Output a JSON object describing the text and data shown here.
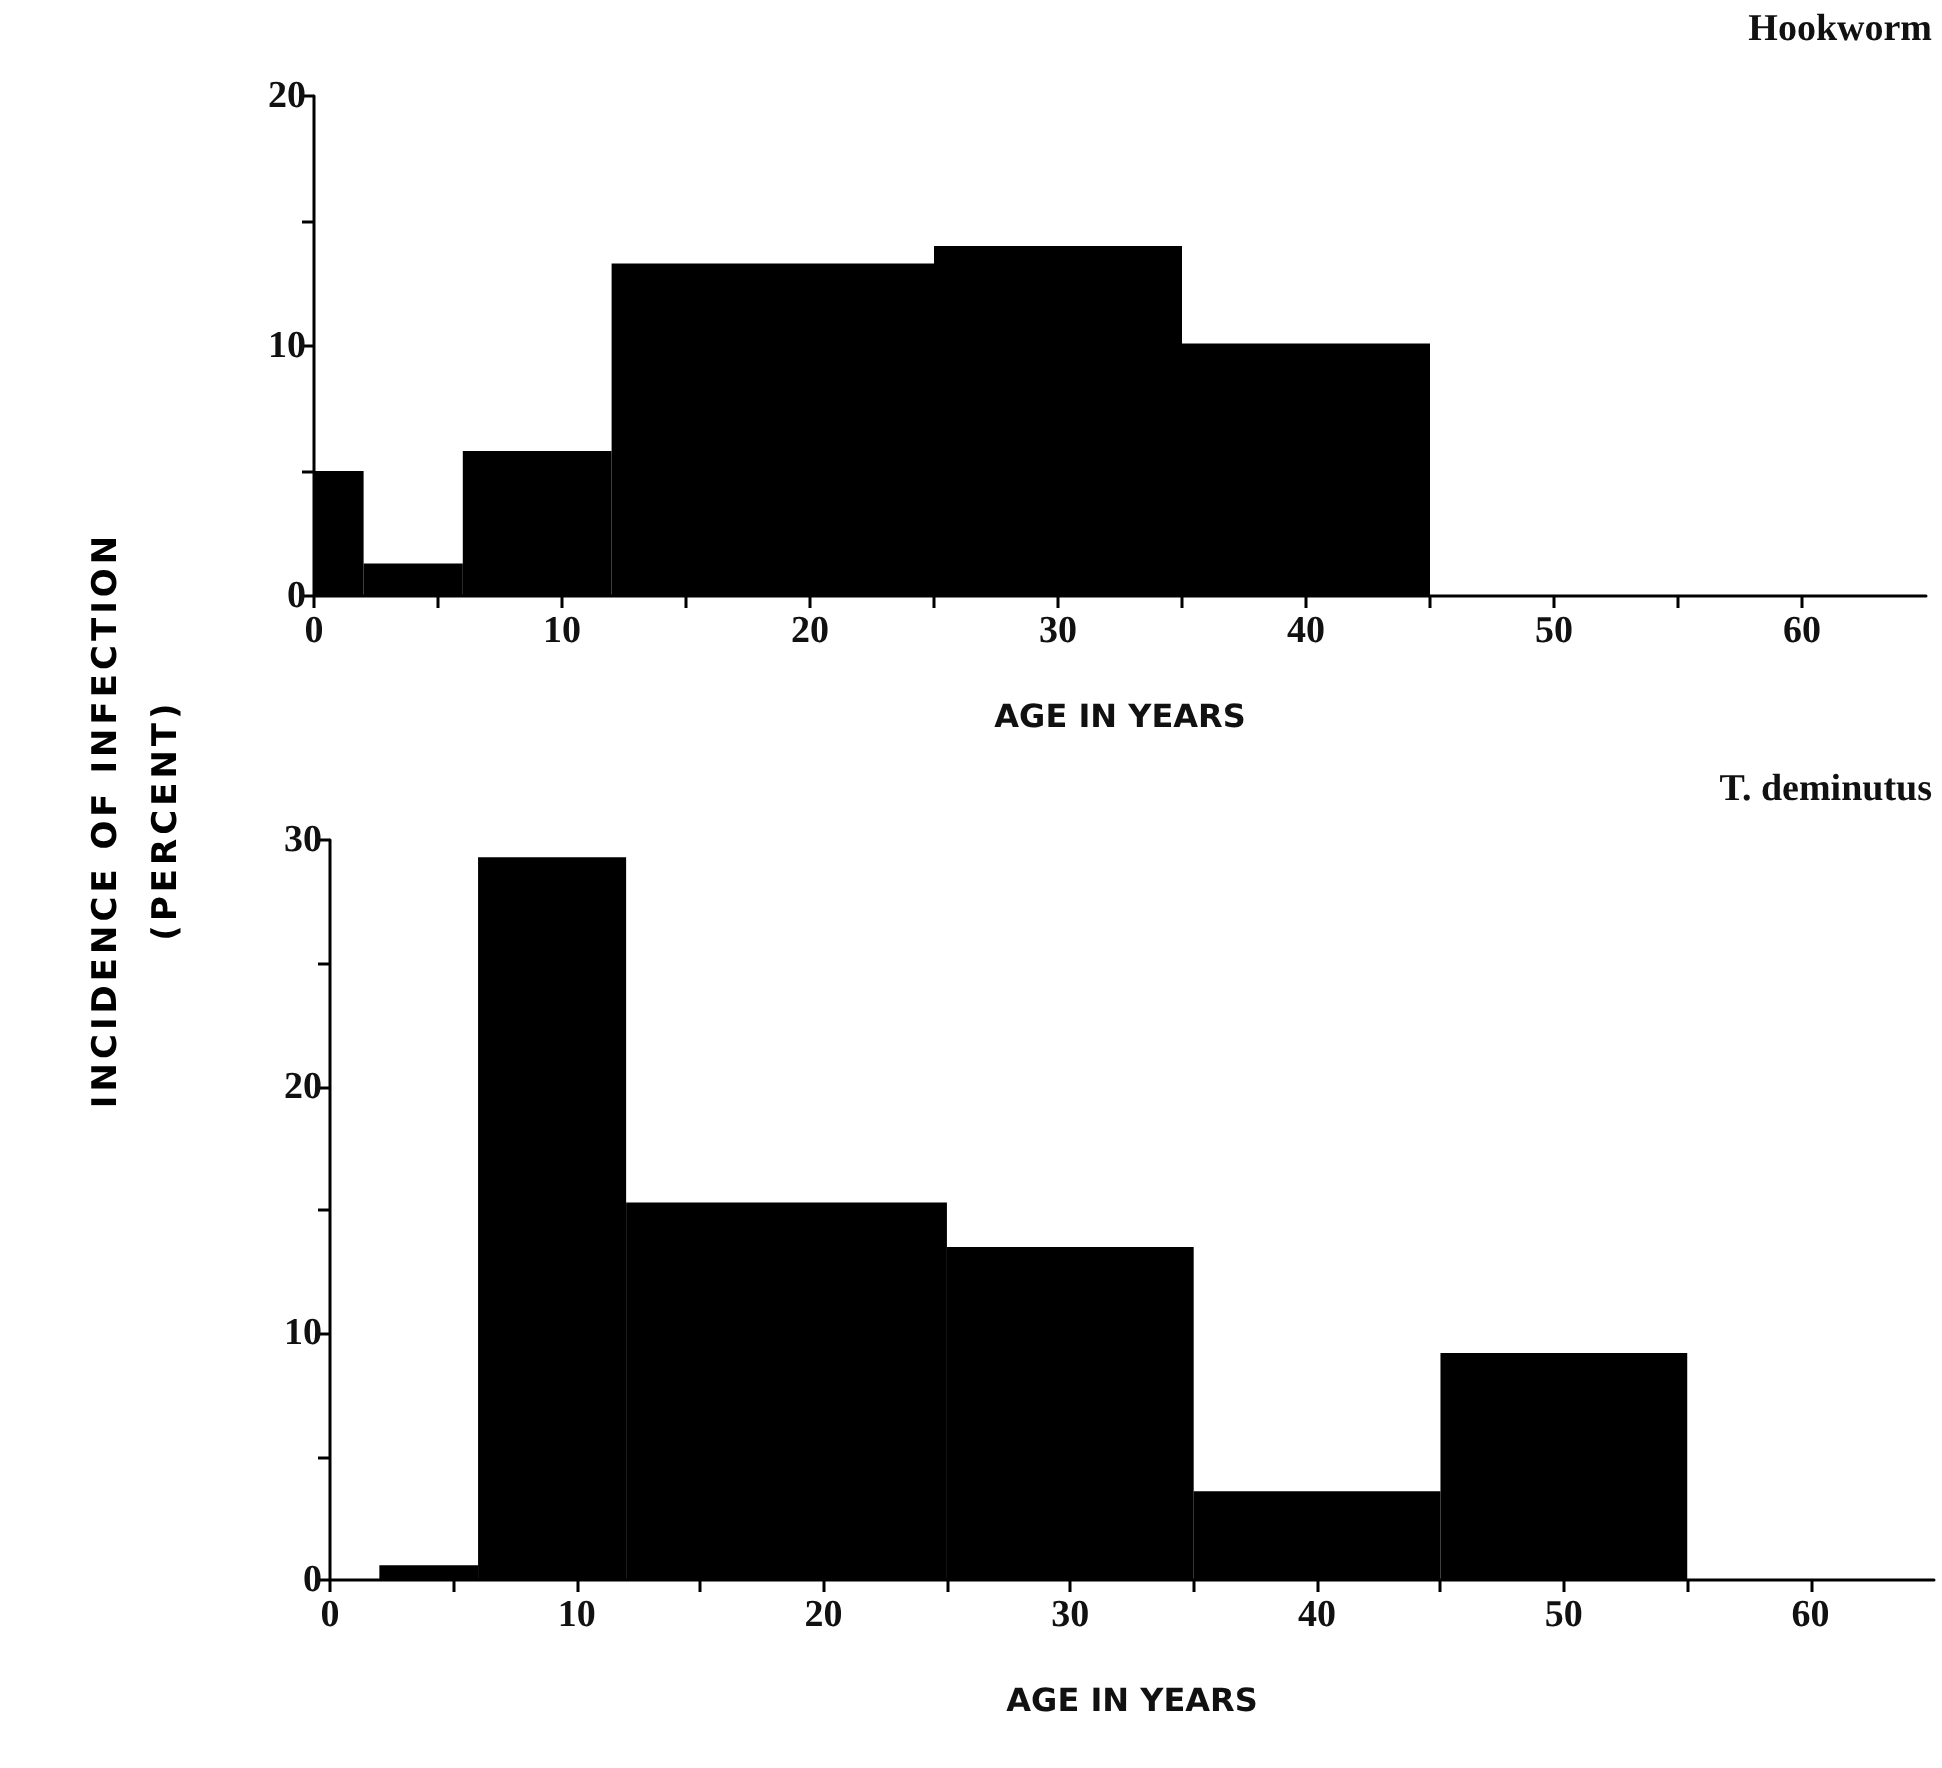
{
  "chart_data": [
    {
      "type": "histogram",
      "title": "Hookworm",
      "xlabel": "AGE IN YEARS",
      "ylabel": "INCIDENCE OF INFECTION\n(PERCENT)",
      "bins": [
        0,
        2,
        6,
        12,
        25,
        35,
        45
      ],
      "values": [
        5,
        1.3,
        5.8,
        13.3,
        14,
        10.1
      ],
      "color": "#000000",
      "xlim": [
        0,
        65
      ],
      "xticks": [
        0,
        {
          "value": 5,
          "label": null
        },
        10,
        {
          "value": 15,
          "label": null
        },
        20,
        {
          "value": 25,
          "label": null
        },
        30,
        {
          "value": 35,
          "label": null
        },
        40,
        {
          "value": 45,
          "label": null
        },
        50,
        {
          "value": 55,
          "label": null
        },
        60
      ],
      "ylim": [
        0,
        20
      ],
      "yticks": [
        0,
        {
          "value": 5,
          "label": null
        },
        10,
        {
          "value": 15,
          "label": null
        },
        20
      ],
      "grid": false
    },
    {
      "type": "histogram",
      "title": "T. deminutus",
      "xlabel": "AGE IN YEARS",
      "bins": [
        2,
        6,
        12,
        25,
        35,
        45,
        55
      ],
      "values": [
        0.6,
        29.3,
        15.3,
        13.5,
        3.6,
        9.2
      ],
      "color": "#000000",
      "xlim": [
        0,
        65
      ],
      "xticks": [
        0,
        {
          "value": 5,
          "label": null
        },
        10,
        {
          "value": 15,
          "label": null
        },
        20,
        {
          "value": 25,
          "label": null
        },
        30,
        {
          "value": 35,
          "label": null
        },
        40,
        {
          "value": 45,
          "label": null
        },
        50,
        {
          "value": 55,
          "label": null
        },
        60
      ],
      "ylim": [
        0,
        30
      ],
      "yticks": [
        0,
        {
          "value": 5,
          "label": null
        },
        10,
        {
          "value": 15,
          "label": null
        },
        20,
        {
          "value": 25,
          "label": null
        },
        30
      ],
      "grid": false
    }
  ]
}
